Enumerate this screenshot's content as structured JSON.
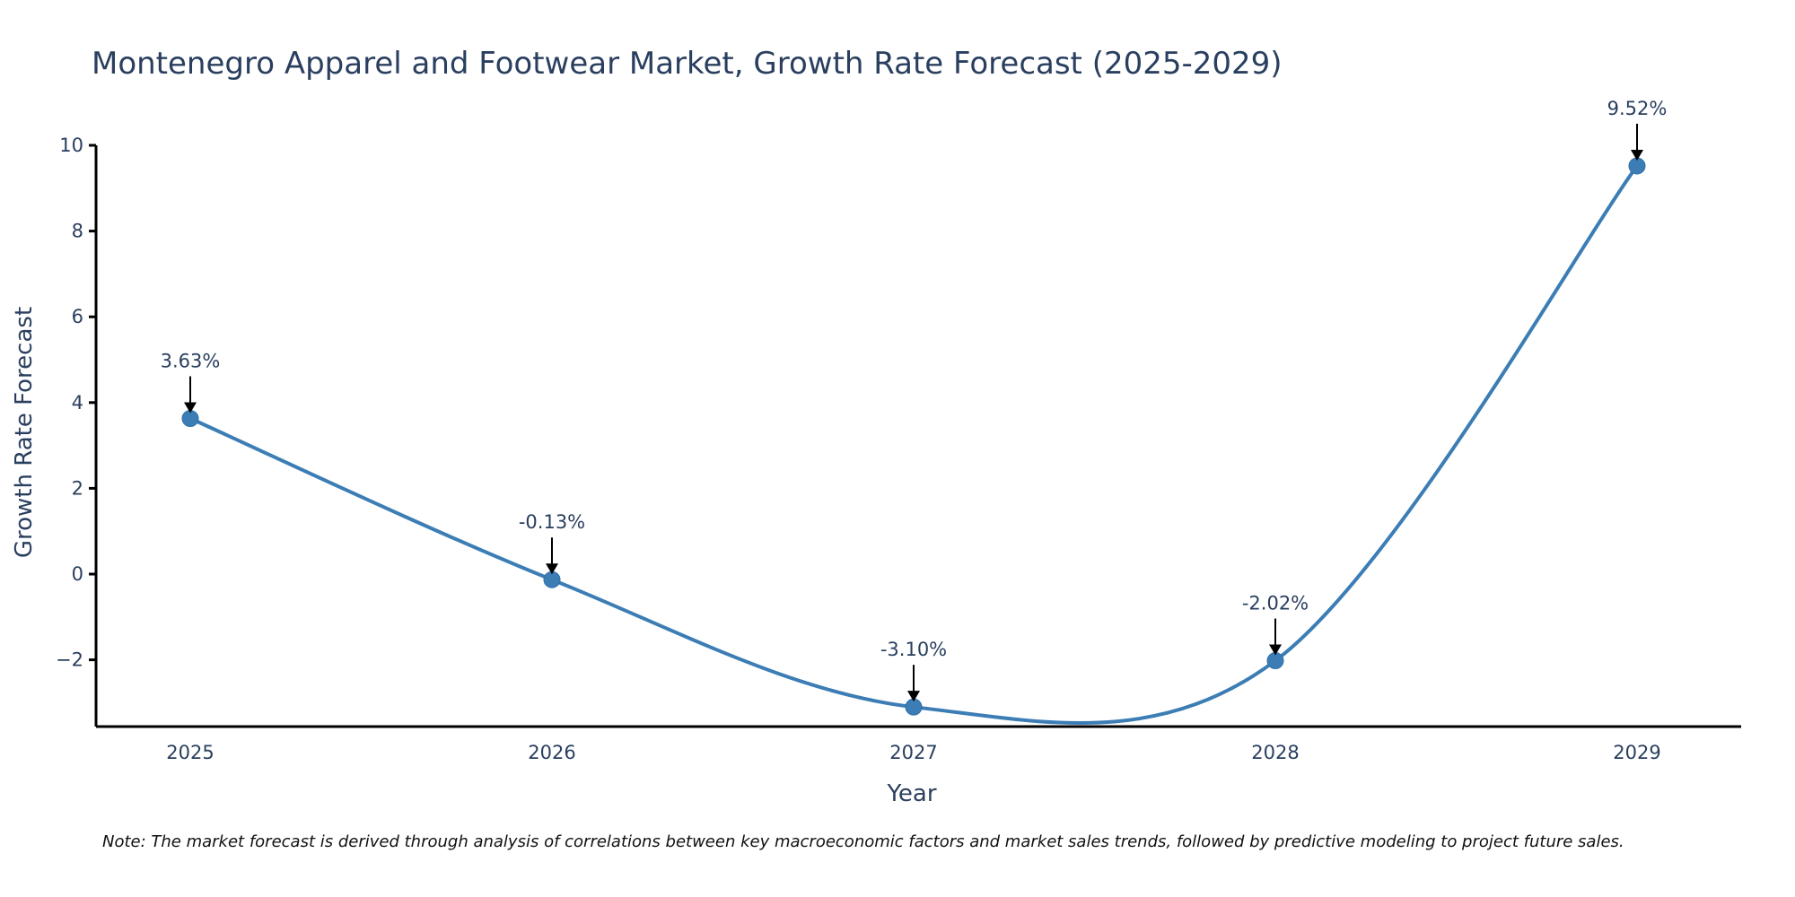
{
  "chart_data": {
    "type": "line",
    "title": "Montenegro Apparel and Footwear Market, Growth Rate Forecast (2025-2029)",
    "xlabel": "Year",
    "ylabel": "Growth Rate Forecast",
    "categories": [
      "2025",
      "2026",
      "2027",
      "2028",
      "2029"
    ],
    "series": [
      {
        "name": "Growth Rate Forecast",
        "values": [
          3.63,
          -0.13,
          -3.1,
          -2.02,
          9.52
        ],
        "labels": [
          "3.63%",
          "-0.13%",
          "-3.10%",
          "-2.02%",
          "9.52%"
        ],
        "color": "#3b7db4"
      }
    ],
    "yticks": [
      10,
      8,
      6,
      4,
      2,
      0,
      -2
    ],
    "ytick_labels": [
      "10",
      "8",
      "6",
      "4",
      "2",
      "0",
      "−2"
    ],
    "ylim": [
      -3.6,
      10
    ],
    "grid": false,
    "legend": "none",
    "note": "Note: The market forecast is derived through analysis of correlations between key macroeconomic factors and market sales trends, followed by predictive modeling to project future sales."
  }
}
